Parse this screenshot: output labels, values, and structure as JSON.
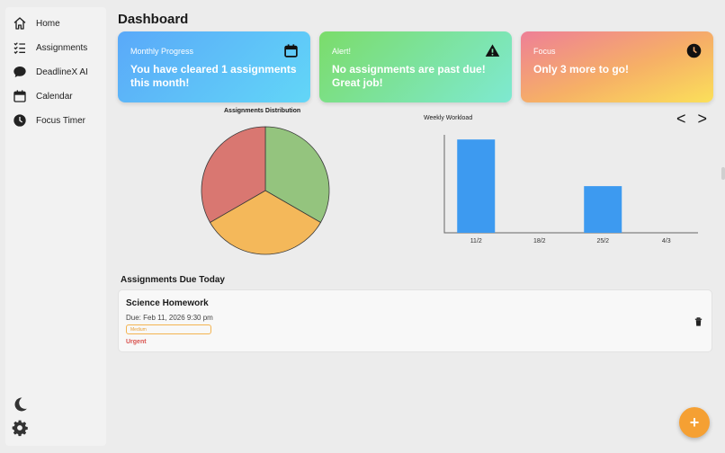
{
  "app": {
    "page_title": "Dashboard"
  },
  "sidebar": {
    "items": [
      {
        "label": "Home",
        "icon": "home-icon"
      },
      {
        "label": "Assignments",
        "icon": "checklist-icon"
      },
      {
        "label": "DeadlineX AI",
        "icon": "chat-bubble-icon"
      },
      {
        "label": "Calendar",
        "icon": "calendar-icon"
      },
      {
        "label": "Focus Timer",
        "icon": "clock-icon"
      }
    ],
    "bottom_icons": [
      "moon-icon",
      "gear-icon"
    ]
  },
  "cards": [
    {
      "label": "Monthly Progress",
      "text": "You have cleared 1 assignments this month!",
      "icon": "calendar-icon"
    },
    {
      "label": "Alert!",
      "text": "No assignments are past due! Great job!",
      "icon": "warning-icon"
    },
    {
      "label": "Focus",
      "text": "Only 3 more to go!",
      "icon": "clock-icon"
    }
  ],
  "colors": {
    "pie_slices": [
      "#94c47e",
      "#f4b85a",
      "#d97771"
    ],
    "bar": "#3d9af0",
    "fab": "#f5a033",
    "urgent": "#d9534f",
    "medium": "#f3b450"
  },
  "chart_data": [
    {
      "type": "pie",
      "title": "Assignments Distribution",
      "values": [
        1,
        1,
        1
      ],
      "legend": false
    },
    {
      "type": "bar",
      "title": "Weekly Workload",
      "categories": [
        "11/2",
        "18/2",
        "25/2",
        "4/3"
      ],
      "values": [
        4,
        0,
        2,
        0
      ],
      "ylim": [
        0,
        4.2
      ],
      "grid": false
    }
  ],
  "chart_nav": {
    "prev": "<",
    "next": ">"
  },
  "due_today": {
    "section_title": "Assignments Due Today",
    "tasks": [
      {
        "name": "Science Homework",
        "due": "Due: Feb 11, 2026 9:30 pm",
        "priority": "Medium",
        "urgency": "Urgent"
      }
    ]
  },
  "fab": {
    "label": "+"
  }
}
